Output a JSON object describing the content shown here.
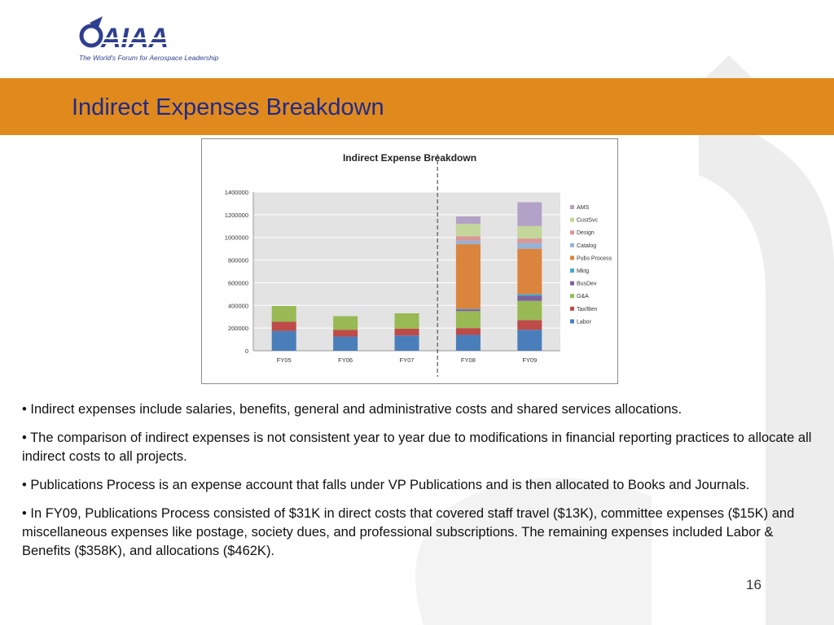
{
  "logo": {
    "wordmark": "AIAA",
    "tagline": "The World's Forum for Aerospace Leadership"
  },
  "slide": {
    "title": "Indirect Expenses Breakdown",
    "page_number": "16"
  },
  "colors": {
    "band": "#e08a1e",
    "title_text": "#1f2a8a",
    "watermark": "#ececec"
  },
  "bullets": [
    "•  Indirect expenses include salaries, benefits, general and administrative costs and shared services allocations.",
    "•  The comparison of indirect expenses is not consistent year to year due to modifications in financial reporting practices to allocate all indirect costs to all projects.",
    "•  Publications Process is an expense account that falls under VP Publications and is then allocated to Books and Journals.",
    "•  In FY09, Publications Process consisted of $31K in direct costs that covered staff travel ($13K), committee expenses ($15K) and miscellaneous expenses like postage, society dues, and professional subscriptions. The remaining expenses included Labor & Benefits ($358K), and allocations ($462K)."
  ],
  "chart_data": {
    "type": "bar",
    "stacked": true,
    "title": "Indirect Expense Breakdown",
    "categories": [
      "FY05",
      "FY06",
      "FY07",
      "FY08",
      "FY09"
    ],
    "ylim": [
      0,
      1400000
    ],
    "yticks": [
      "0",
      "200000",
      "400000",
      "600000",
      "800000",
      "1000000",
      "1200000",
      "1400000"
    ],
    "grid": true,
    "legend_position": "right",
    "divider_after_category": "FY07",
    "series": [
      {
        "name": "Labor",
        "color": "#4a7ebb",
        "values": [
          175000,
          125000,
          135000,
          140000,
          185000
        ]
      },
      {
        "name": "Tax/Ben",
        "color": "#be4b48",
        "values": [
          80000,
          60000,
          60000,
          60000,
          85000
        ]
      },
      {
        "name": "G&A",
        "color": "#98b954",
        "values": [
          140000,
          120000,
          135000,
          150000,
          170000
        ]
      },
      {
        "name": "BusDev",
        "color": "#7d60a0",
        "values": [
          0,
          0,
          0,
          15000,
          45000
        ]
      },
      {
        "name": "Mktg",
        "color": "#46aac5",
        "values": [
          0,
          0,
          0,
          5000,
          15000
        ]
      },
      {
        "name": "Pubs Process",
        "color": "#db843d",
        "values": [
          0,
          0,
          0,
          570000,
          400000
        ]
      },
      {
        "name": "Catalog",
        "color": "#95b3d7",
        "values": [
          0,
          0,
          0,
          30000,
          50000
        ]
      },
      {
        "name": "Design",
        "color": "#da9694",
        "values": [
          0,
          0,
          0,
          40000,
          40000
        ]
      },
      {
        "name": "CustSvc",
        "color": "#c3d69b",
        "values": [
          0,
          0,
          0,
          110000,
          110000
        ]
      },
      {
        "name": "AMS",
        "color": "#b3a2c7",
        "values": [
          0,
          0,
          0,
          65000,
          210000
        ]
      }
    ]
  }
}
